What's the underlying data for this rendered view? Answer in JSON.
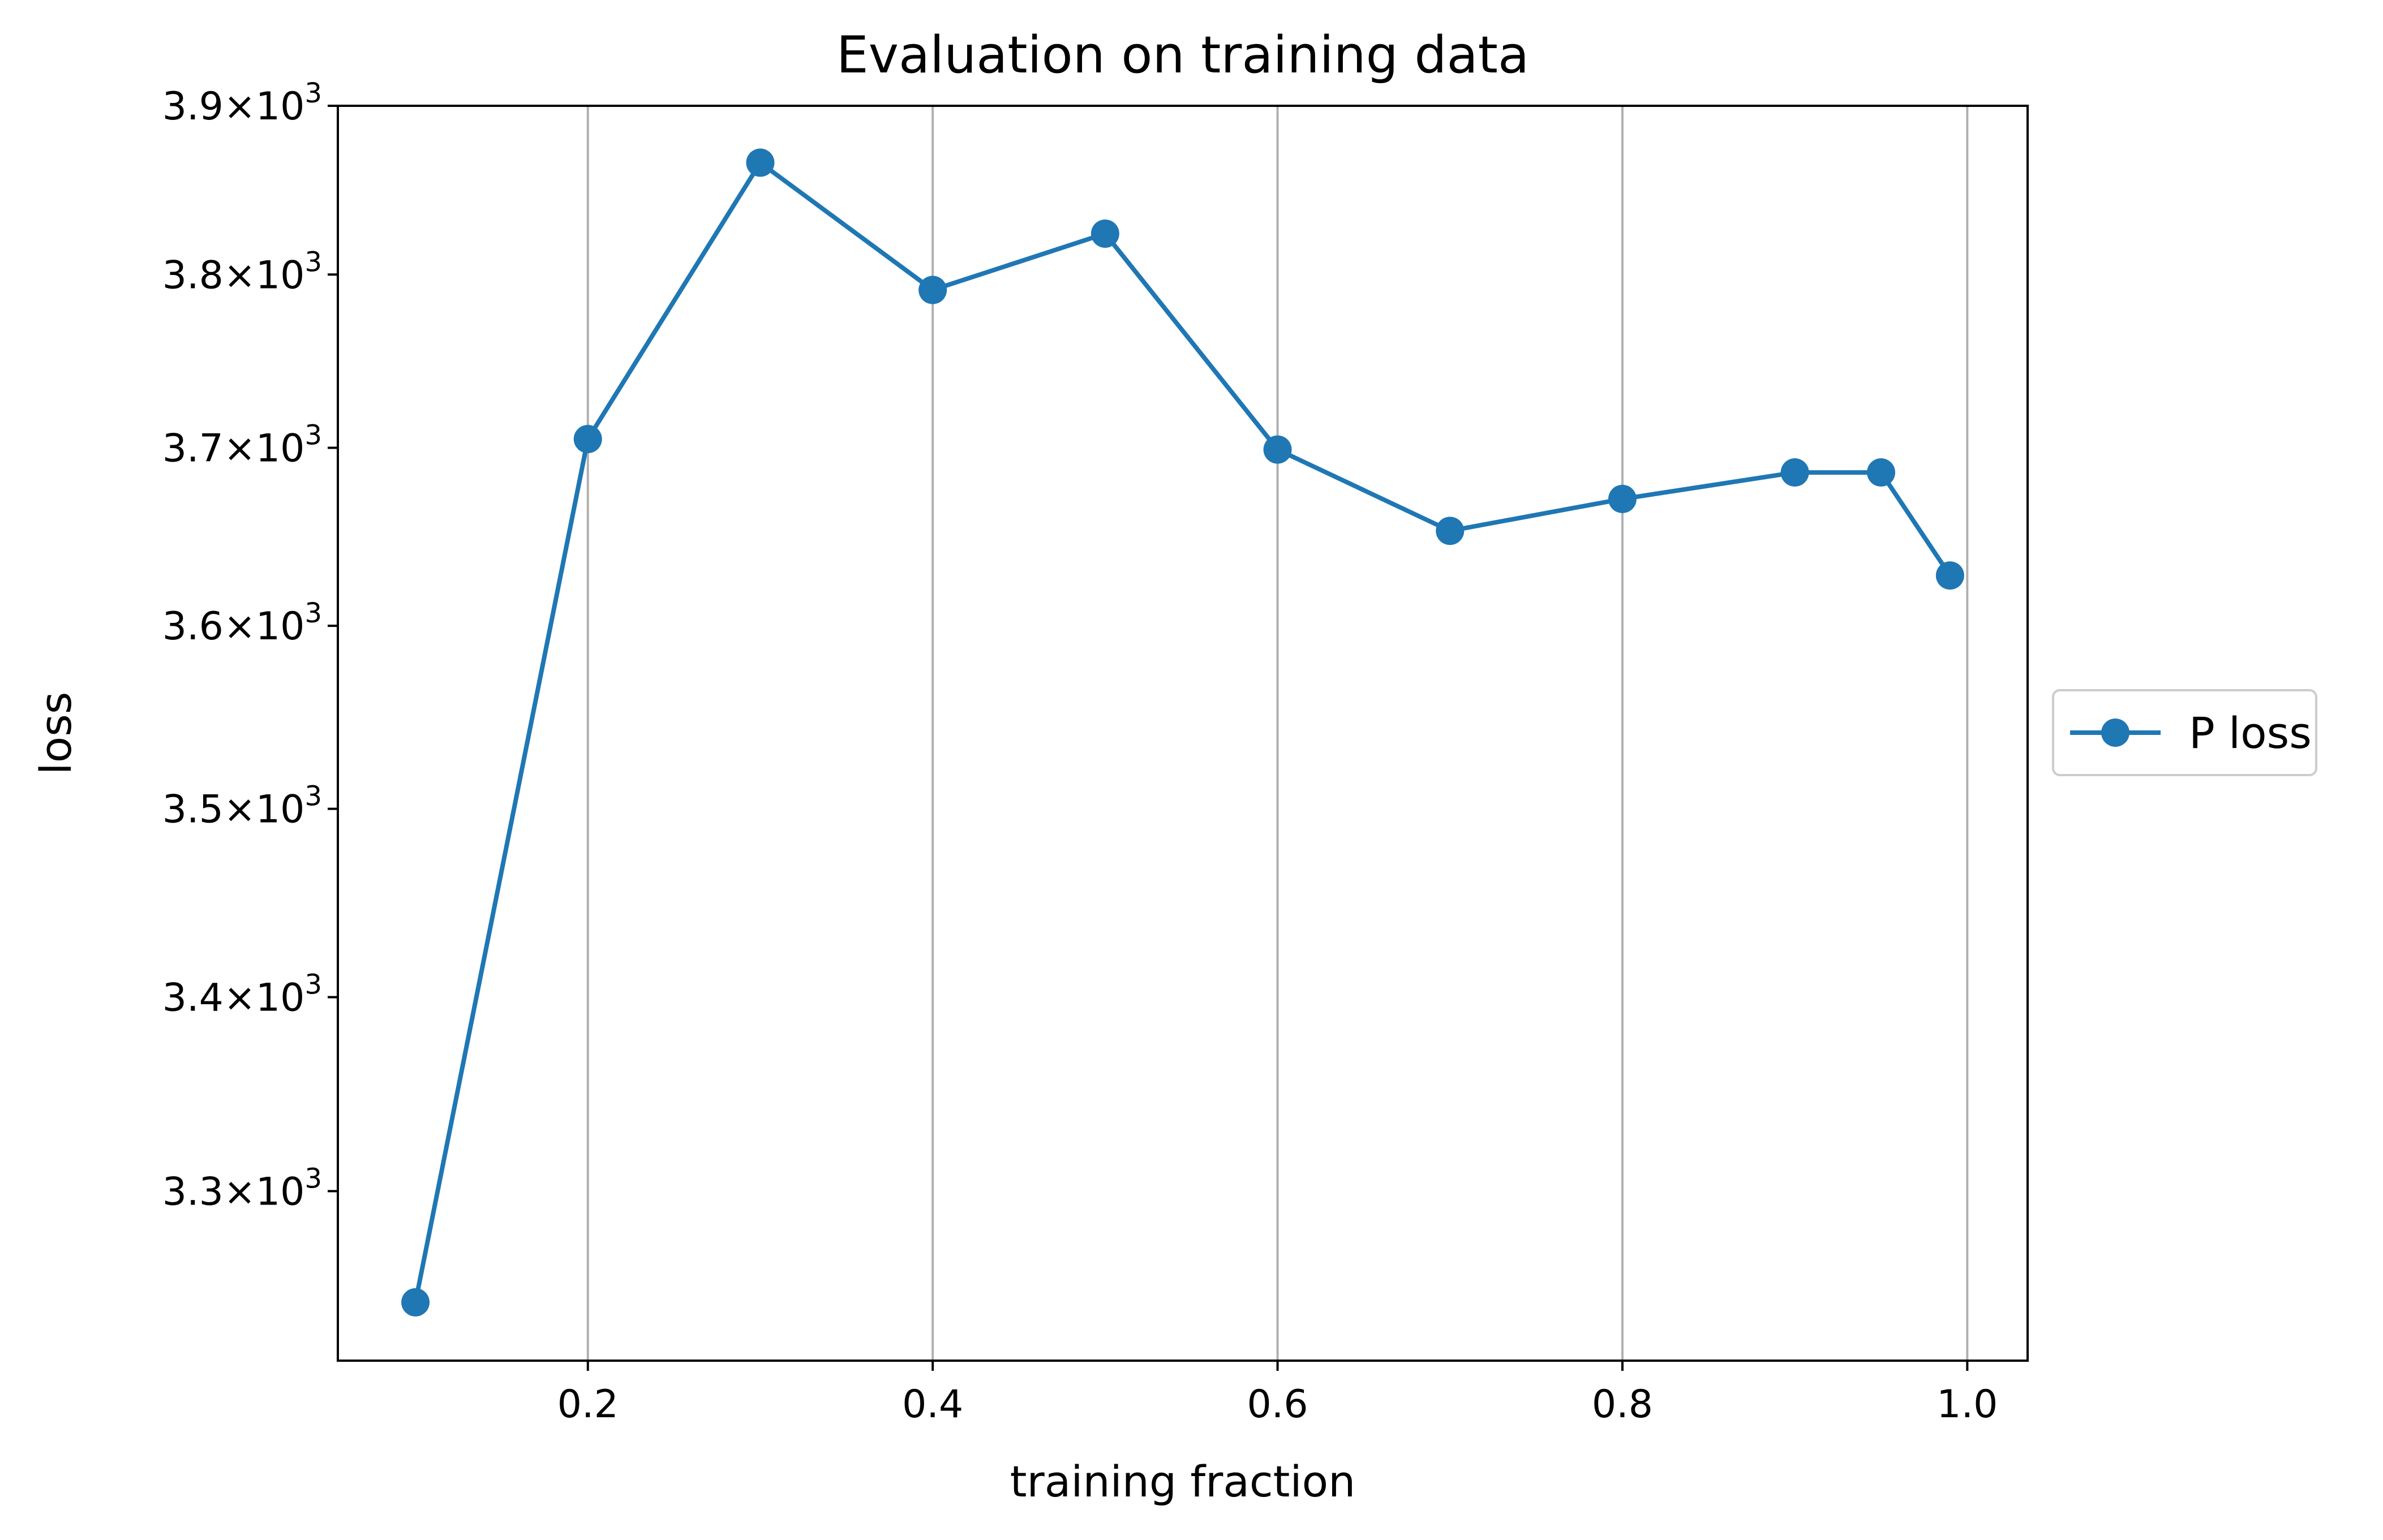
{
  "chart_data": {
    "type": "line",
    "title": "Evaluation on training data",
    "xlabel": "training fraction",
    "ylabel": "loss",
    "yscale": "log",
    "xlim": [
      0.055,
      1.035
    ],
    "ylim": [
      3215,
      3900
    ],
    "grid": "x-major vertical lines",
    "legend_position": "outside right, vertically centered",
    "x_ticks": [
      {
        "value": 0.2,
        "label": "0.2"
      },
      {
        "value": 0.4,
        "label": "0.4"
      },
      {
        "value": 0.6,
        "label": "0.6"
      },
      {
        "value": 0.8,
        "label": "0.8"
      },
      {
        "value": 1.0,
        "label": "1.0"
      }
    ],
    "y_ticks": [
      {
        "value": 3300,
        "mantissa": "3.3",
        "base": "10",
        "exp": "3"
      },
      {
        "value": 3400,
        "mantissa": "3.4",
        "base": "10",
        "exp": "3"
      },
      {
        "value": 3500,
        "mantissa": "3.5",
        "base": "10",
        "exp": "3"
      },
      {
        "value": 3600,
        "mantissa": "3.6",
        "base": "10",
        "exp": "3"
      },
      {
        "value": 3700,
        "mantissa": "3.7",
        "base": "10",
        "exp": "3"
      },
      {
        "value": 3800,
        "mantissa": "3.8",
        "base": "10",
        "exp": "3"
      },
      {
        "value": 3900,
        "mantissa": "3.9",
        "base": "10",
        "exp": "3"
      }
    ],
    "series": [
      {
        "name": "P loss",
        "color": "#1f77b4",
        "marker": "circle",
        "x": [
          0.1,
          0.2,
          0.3,
          0.4,
          0.5,
          0.6,
          0.7,
          0.8,
          0.9,
          0.95,
          0.99
        ],
        "y": [
          3244,
          3705,
          3866,
          3791,
          3824,
          3699,
          3653,
          3671,
          3686,
          3686,
          3628
        ]
      }
    ]
  }
}
